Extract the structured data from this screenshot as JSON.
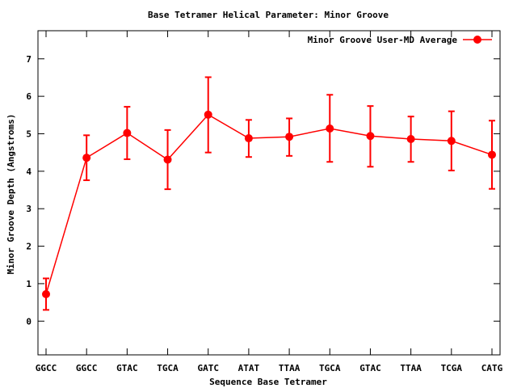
{
  "chart_data": {
    "type": "line",
    "title": "Base Tetramer Helical Parameter: Minor Groove",
    "xlabel": "Sequence Base Tetramer",
    "ylabel": "Minor Groove Depth (Angstroms)",
    "categories": [
      "GGCC",
      "GGCC",
      "GTAC",
      "TGCA",
      "GATC",
      "ATAT",
      "TTAA",
      "TGCA",
      "GTAC",
      "TTAA",
      "TCGA",
      "CATG"
    ],
    "ylim": [
      -0.9,
      7.75
    ],
    "yticks": [
      0,
      1,
      2,
      3,
      4,
      5,
      6,
      7
    ],
    "grid": false,
    "legend_position": "top-right",
    "series": [
      {
        "name": "Minor Groove User-MD Average",
        "color": "#ff0000",
        "values": [
          0.72,
          4.36,
          5.02,
          4.31,
          5.51,
          4.88,
          4.92,
          5.14,
          4.94,
          4.86,
          4.81,
          4.44
        ],
        "err_low": [
          0.3,
          3.76,
          4.32,
          3.52,
          4.5,
          4.38,
          4.41,
          4.25,
          4.12,
          4.25,
          4.02,
          3.53
        ],
        "err_high": [
          1.14,
          4.96,
          5.72,
          5.1,
          6.51,
          5.37,
          5.41,
          6.04,
          5.74,
          5.46,
          5.6,
          5.35
        ]
      }
    ]
  }
}
